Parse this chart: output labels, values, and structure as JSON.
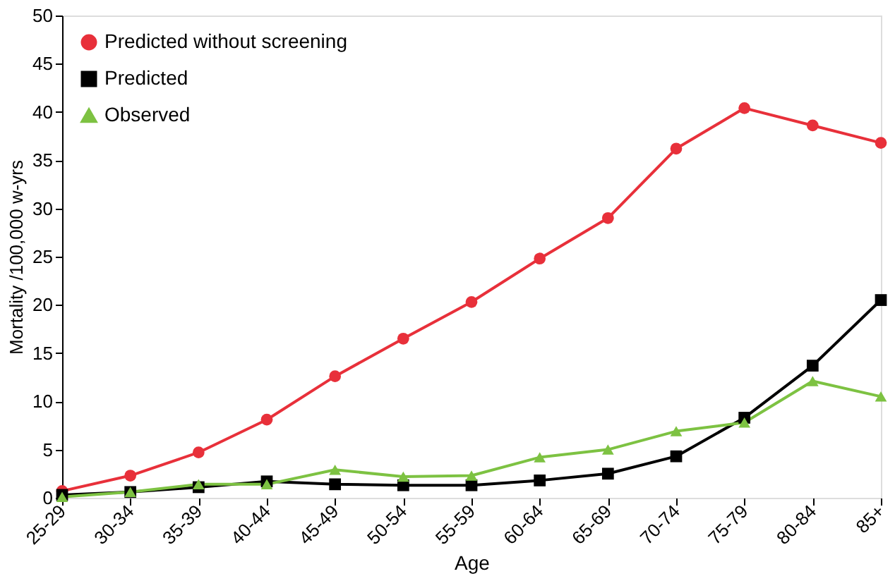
{
  "chart_data": {
    "type": "line",
    "xlabel": "Age",
    "ylabel": "Mortality /100,000 w-yrs",
    "categories": [
      "25-29",
      "30-34",
      "35-39",
      "40-44",
      "45-49",
      "50-54",
      "55-59",
      "60-64",
      "65-69",
      "70-74",
      "75-79",
      "80-84",
      "85+"
    ],
    "series": [
      {
        "name": "Predicted without screening",
        "color": "#e8303a",
        "marker": "circle",
        "values": [
          0.7,
          2.3,
          4.7,
          8.1,
          12.6,
          16.5,
          20.3,
          24.8,
          29.0,
          36.2,
          40.4,
          38.6,
          36.8
        ]
      },
      {
        "name": "Predicted",
        "color": "#000000",
        "marker": "square",
        "values": [
          0.3,
          0.6,
          1.1,
          1.7,
          1.4,
          1.3,
          1.3,
          1.8,
          2.5,
          4.3,
          8.3,
          13.7,
          20.5
        ]
      },
      {
        "name": "Observed",
        "color": "#7dc242",
        "marker": "triangle",
        "values": [
          0.1,
          0.6,
          1.4,
          1.4,
          2.9,
          2.2,
          2.3,
          4.2,
          5.0,
          6.9,
          7.8,
          12.1,
          10.5
        ]
      }
    ],
    "ylim": [
      0,
      50
    ],
    "yticks": [
      0,
      5,
      10,
      15,
      20,
      25,
      30,
      35,
      40,
      45,
      50
    ],
    "grid": false,
    "legend": "top left",
    "line_style": "solid"
  }
}
